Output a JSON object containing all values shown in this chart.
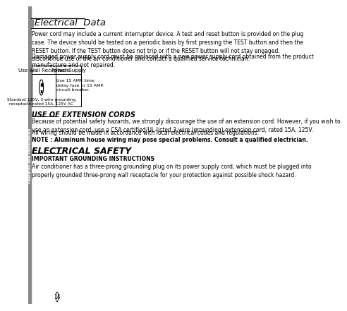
{
  "page_bg": "#ffffff",
  "sidebar_bg": "#888888",
  "sidebar_text": "Features and Installation",
  "sidebar_text_color": "#ffffff",
  "header_title": "Electrical  Data",
  "header_square_color": "#888888",
  "page_number": "14",
  "body_text_1": "Power cord may include a current interrupter device. A test and reset button is provided on the plug\ncase. The device should be tested on a periodic basis by first pressing the TEST button and then the\nRESET button. If the TEST button does not trip or if the RESET button will not stay engaged,\ndiscontinue use of the air conditioner and contact a qualified service technician.",
  "body_text_2": "Damaged power supply cord must be replaced with a new power supply cord obtained from the product\nmanufacture and not repaired.",
  "table_col1_header": "Use Wall Receptacle",
  "table_col2_header": "Power Supply",
  "table_col1_body": "Standard 125V, 3-wire grounding\nreceptacle rated 15A, 125V AC",
  "table_col2_body": "Use 15 AMP. time\ndelay fuse or 15 AMP.\ncircuit breaker.",
  "section1_title": "USE OF EXTENSION CORDS",
  "section1_text1": "Because of potential safety hazards, we strongly discourage the use of an extension cord. However, if you wish to\nuse an extension cord, use a CSA certified/UL-listed 3-wire (grounding) extension cord, rated 15A, 125V.",
  "section1_text2": "All wiring should be made in accordance with local electrical codes and regulations.",
  "section1_note": "NOTE : Aluminum house wiring may pose special problems. Consult a qualified electrician.",
  "section2_title": "ELECTRICAL SAFETY",
  "section2_subtitle": "IMPORTANT GROUNDING INSTRUCTIONS",
  "section2_text": "Air conditioner has a three-prong grounding plug on its power supply cord, which must be plugged into\nproperly grounded three-prong wall receptacle for your protection against possible shock hazard.",
  "line_color": "#000000",
  "text_color": "#000000",
  "table_border_color": "#000000",
  "font_size_body": 5.5,
  "font_size_header": 9.5,
  "font_size_section": 7.0,
  "font_size_note": 5.5,
  "font_size_section2_title": 9.0
}
